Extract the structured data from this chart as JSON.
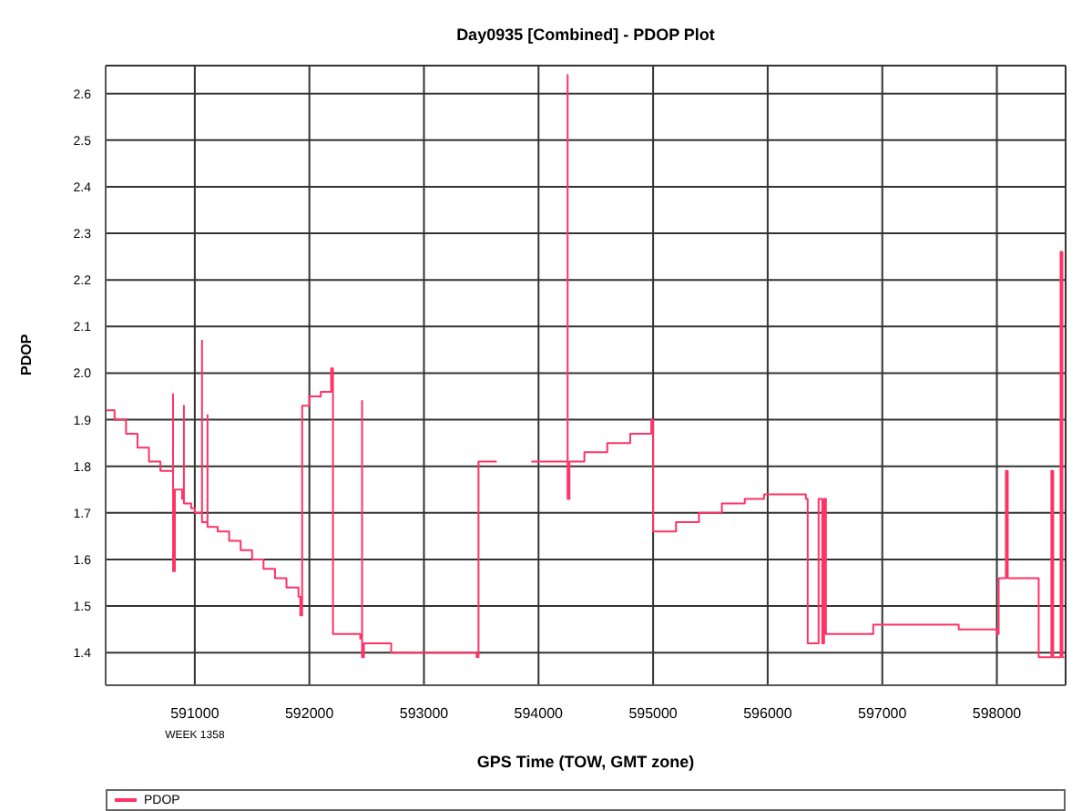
{
  "chart_data": {
    "type": "step",
    "title": "Day0935 [Combined] - PDOP Plot",
    "xlabel": "GPS Time (TOW, GMT zone)",
    "ylabel": "PDOP",
    "annotations": [
      "WEEK 1358"
    ],
    "xlim": [
      590222,
      598600
    ],
    "xticks": [
      591000,
      592000,
      593000,
      594000,
      595000,
      596000,
      597000,
      598000
    ],
    "ylim": [
      1.33,
      2.66
    ],
    "yticks": [
      1.4,
      1.5,
      1.6,
      1.7,
      1.8,
      1.9,
      {
        "value": 2,
        "label": "2.0"
      },
      2.1,
      2.2,
      2.3,
      2.4,
      2.5,
      2.6
    ],
    "grid": true,
    "legend": "bottom",
    "marker": "none",
    "line_style": "solid",
    "series": [
      {
        "name": "PDOP",
        "color": "#ff3366",
        "x": [
          590222,
          590300,
          590400,
          590500,
          590600,
          590700,
          590810,
          590810,
          590810,
          590826,
          590889,
          590905,
          590905,
          590968,
          591000,
          591063,
          591063,
          591063,
          591111,
          591111,
          591200,
          591300,
          591400,
          591500,
          591600,
          591700,
          591800,
          591905,
          591921,
          591937,
          592000,
          592100,
          592190,
          592206,
          592444,
          592460,
          592460,
          592476,
          592714,
          593460,
          593476,
          593635,
          593650,
          593937,
          594222,
          594254,
          594254,
          594270,
          594400,
          594600,
          594800,
          594984,
          595000,
          595200,
          595400,
          595600,
          595800,
          595968,
          596333,
          596349,
          596444,
          596444,
          596476,
          596492,
          596508,
          596698,
          596921,
          597397,
          597667,
          598000,
          598016,
          598079,
          598079,
          598095,
          598349,
          598365,
          598476,
          598476,
          598492,
          598556,
          598556,
          598572,
          598587
        ],
        "values": [
          1.92,
          1.9,
          1.87,
          1.84,
          1.81,
          1.79,
          1.76,
          1.955,
          1.575,
          1.75,
          1.73,
          1.93,
          1.72,
          1.71,
          1.7,
          1.69,
          2.07,
          1.68,
          1.91,
          1.67,
          1.66,
          1.64,
          1.62,
          1.6,
          1.58,
          1.56,
          1.54,
          1.52,
          1.48,
          1.93,
          1.95,
          1.96,
          2.01,
          1.44,
          1.43,
          1.94,
          1.39,
          1.42,
          1.4,
          1.39,
          1.81,
          1.81,
          null,
          1.81,
          1.81,
          2.64,
          1.73,
          1.81,
          1.83,
          1.85,
          1.87,
          1.9,
          1.66,
          1.68,
          1.7,
          1.72,
          1.73,
          1.74,
          1.73,
          1.42,
          1.42,
          1.73,
          1.42,
          1.73,
          1.44,
          1.44,
          1.46,
          1.46,
          1.45,
          1.44,
          1.56,
          1.56,
          1.79,
          1.56,
          1.56,
          1.39,
          1.39,
          1.79,
          1.39,
          1.39,
          2.26,
          1.39,
          1.39
        ]
      }
    ]
  }
}
